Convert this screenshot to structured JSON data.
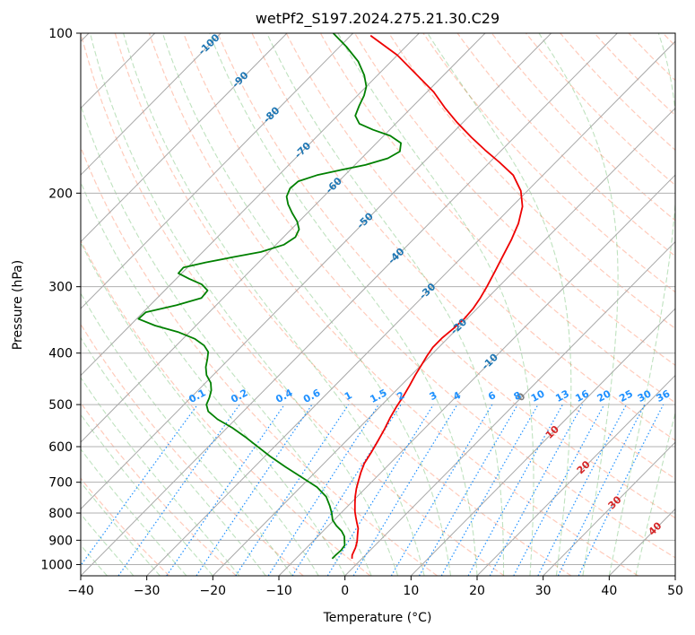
{
  "chart_data": {
    "type": "line",
    "title": "wetPf2_S197.2024.275.21.30.C29",
    "xlabel": "Temperature (°C)",
    "ylabel": "Pressure (hPa)",
    "xlim": [
      -40,
      50
    ],
    "ylim": [
      1050,
      100
    ],
    "yscale": "log",
    "grid": true,
    "x_ticks": [
      "−40",
      "−30",
      "−20",
      "−10",
      "0",
      "10",
      "20",
      "30",
      "40",
      "50"
    ],
    "y_ticks": [
      "100",
      "200",
      "300",
      "400",
      "500",
      "600",
      "700",
      "800",
      "900",
      "1000"
    ],
    "series": [
      {
        "role": "temperature",
        "color": "#ee0000",
        "points": [
          [
            -1.5,
            975
          ],
          [
            -2,
            960
          ],
          [
            -2.6,
            930
          ],
          [
            -3.3,
            905
          ],
          [
            -4.2,
            880
          ],
          [
            -5.1,
            855
          ],
          [
            -6.1,
            835
          ],
          [
            -7.1,
            815
          ],
          [
            -8.1,
            795
          ],
          [
            -9.2,
            770
          ],
          [
            -10.3,
            745
          ],
          [
            -11.3,
            720
          ],
          [
            -12.2,
            695
          ],
          [
            -13.1,
            670
          ],
          [
            -13.9,
            645
          ],
          [
            -14.5,
            615
          ],
          [
            -15.2,
            585
          ],
          [
            -16,
            555
          ],
          [
            -16.8,
            530
          ],
          [
            -17.5,
            505
          ],
          [
            -18.1,
            480
          ],
          [
            -18.7,
            460
          ],
          [
            -19.4,
            440
          ],
          [
            -20,
            420
          ],
          [
            -20.5,
            405
          ],
          [
            -20.9,
            390
          ],
          [
            -20.9,
            375
          ],
          [
            -20.6,
            360
          ],
          [
            -20.4,
            345
          ],
          [
            -20.6,
            330
          ],
          [
            -21.1,
            315
          ],
          [
            -21.8,
            300
          ],
          [
            -22.9,
            280
          ],
          [
            -24,
            262
          ],
          [
            -25.1,
            245
          ],
          [
            -26.5,
            228
          ],
          [
            -28.4,
            212
          ],
          [
            -31,
            198
          ],
          [
            -34.5,
            185
          ],
          [
            -38.5,
            175
          ],
          [
            -42.5,
            166
          ],
          [
            -46.5,
            157
          ],
          [
            -51,
            147
          ],
          [
            -55,
            138
          ],
          [
            -59,
            129
          ],
          [
            -64,
            120
          ],
          [
            -70,
            110
          ],
          [
            -77,
            101
          ]
        ]
      },
      {
        "role": "dewpoint",
        "color": "#008000",
        "points": [
          [
            -4.5,
            975
          ],
          [
            -4.5,
            960
          ],
          [
            -4.4,
            940
          ],
          [
            -4.6,
            920
          ],
          [
            -5.2,
            905
          ],
          [
            -6,
            885
          ],
          [
            -7.2,
            865
          ],
          [
            -8.8,
            845
          ],
          [
            -10.2,
            825
          ],
          [
            -11.4,
            800
          ],
          [
            -12.8,
            775
          ],
          [
            -14.7,
            745
          ],
          [
            -17.5,
            715
          ],
          [
            -21.3,
            685
          ],
          [
            -25.3,
            655
          ],
          [
            -29.3,
            625
          ],
          [
            -32.8,
            598
          ],
          [
            -35.9,
            575
          ],
          [
            -39.2,
            553
          ],
          [
            -42.7,
            533
          ],
          [
            -45.3,
            515
          ],
          [
            -46.6,
            500
          ],
          [
            -47.2,
            485
          ],
          [
            -48,
            470
          ],
          [
            -49.2,
            455
          ],
          [
            -51,
            440
          ],
          [
            -52.3,
            425
          ],
          [
            -53.3,
            410
          ],
          [
            -54.2,
            398
          ],
          [
            -55.8,
            387
          ],
          [
            -58.2,
            376
          ],
          [
            -61.8,
            365
          ],
          [
            -66.2,
            355
          ],
          [
            -69.7,
            345
          ],
          [
            -69.6,
            335
          ],
          [
            -66,
            325
          ],
          [
            -63.3,
            315
          ],
          [
            -63.5,
            305
          ],
          [
            -65.3,
            297
          ],
          [
            -68,
            290
          ],
          [
            -70.5,
            283
          ],
          [
            -70.6,
            276
          ],
          [
            -68,
            270
          ],
          [
            -64.7,
            264
          ],
          [
            -61.2,
            258
          ],
          [
            -58.8,
            250
          ],
          [
            -58.2,
            242
          ],
          [
            -58.8,
            234
          ],
          [
            -60.3,
            226
          ],
          [
            -62.3,
            218
          ],
          [
            -64.2,
            210
          ],
          [
            -65.6,
            203
          ],
          [
            -66.3,
            196
          ],
          [
            -66.1,
            190
          ],
          [
            -64.2,
            185
          ],
          [
            -61.5,
            181
          ],
          [
            -58.4,
            177
          ],
          [
            -56,
            172
          ],
          [
            -55.2,
            167
          ],
          [
            -56.3,
            161
          ],
          [
            -59,
            156
          ],
          [
            -62.5,
            152
          ],
          [
            -65.5,
            148
          ],
          [
            -67.3,
            143
          ],
          [
            -68.2,
            137
          ],
          [
            -69,
            131
          ],
          [
            -70,
            126
          ],
          [
            -72,
            120
          ],
          [
            -75,
            113
          ],
          [
            -79,
            106
          ],
          [
            -83,
            100
          ]
        ]
      }
    ],
    "isotherm_labels": [
      "-100",
      "-90",
      "-80",
      "-70",
      "-60",
      "-50",
      "-40",
      "-30",
      "-20",
      "-10",
      "0",
      "10",
      "20",
      "30",
      "40"
    ],
    "mixing_ratio_labels": [
      "0.1",
      "0.2",
      "0.4",
      "0.6",
      "1",
      "1.5",
      "2",
      "3",
      "4",
      "6",
      "8",
      "10",
      "13",
      "16",
      "20",
      "25",
      "30",
      "36"
    ],
    "colors": {
      "isotherm_label_cold": "#1f77b4",
      "isotherm_label_zero": "#808080",
      "isotherm_label_warm": "#d62728",
      "mixing_ratio_label": "#1e90ff"
    }
  }
}
